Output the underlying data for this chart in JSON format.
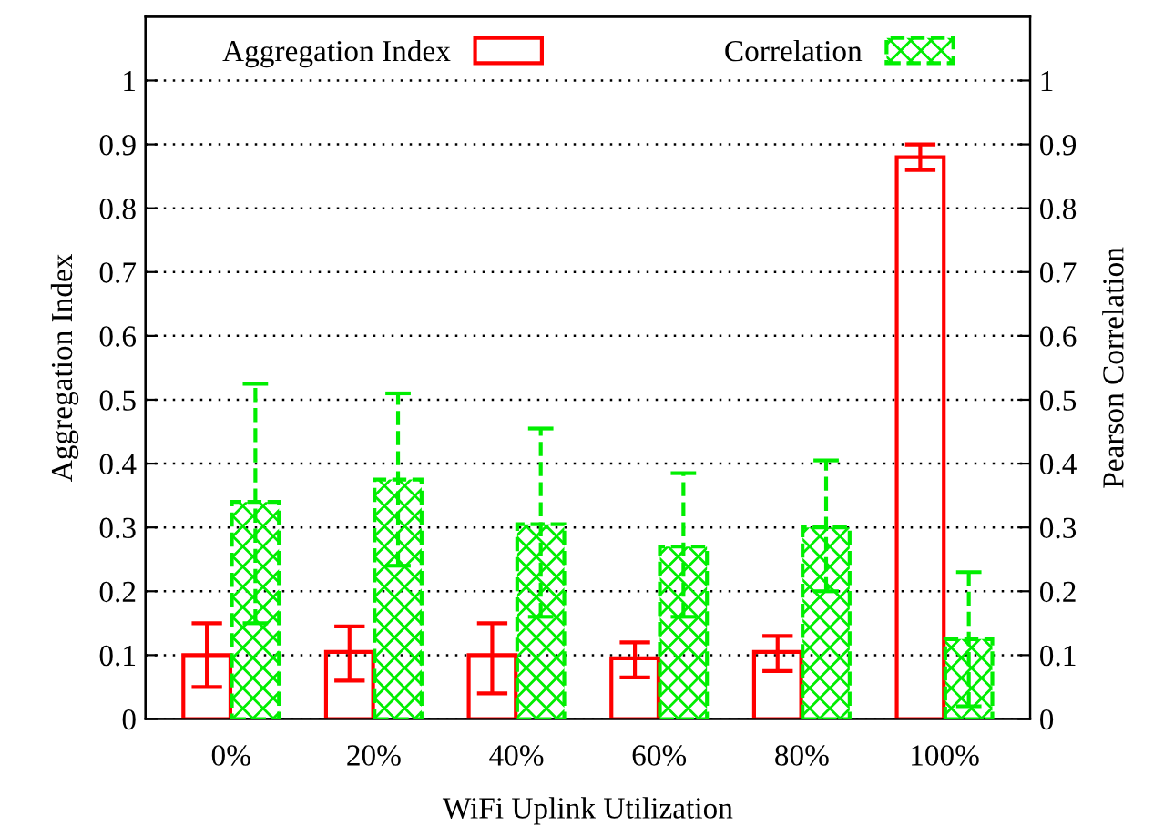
{
  "chart_data": {
    "type": "bar",
    "xlabel": "WiFi Uplink Utilization",
    "ylabel": "Aggregation Index",
    "y2label": "Pearson Correlation",
    "categories": [
      "0%",
      "20%",
      "40%",
      "60%",
      "80%",
      "100%"
    ],
    "series": [
      {
        "name": "Aggregation Index",
        "color": "#ff0000",
        "values": [
          0.1,
          0.105,
          0.1,
          0.095,
          0.105,
          0.88
        ],
        "errors": [
          [
            0.05,
            0.15
          ],
          [
            0.06,
            0.145
          ],
          [
            0.04,
            0.15
          ],
          [
            0.065,
            0.12
          ],
          [
            0.075,
            0.13
          ],
          [
            0.86,
            0.9
          ]
        ]
      },
      {
        "name": "Correlation",
        "color": "#00ee00",
        "axis": "y2",
        "values": [
          0.34,
          0.375,
          0.305,
          0.27,
          0.3,
          0.125
        ],
        "errors": [
          [
            0.15,
            0.525
          ],
          [
            0.24,
            0.51
          ],
          [
            0.16,
            0.455
          ],
          [
            0.16,
            0.385
          ],
          [
            0.2,
            0.405
          ],
          [
            0.02,
            0.23
          ]
        ]
      }
    ],
    "ylim": [
      0,
      1.1
    ],
    "yticks": [
      0,
      0.1,
      0.2,
      0.3,
      0.4,
      0.5,
      0.6,
      0.7,
      0.8,
      0.9,
      1
    ],
    "y2lim": [
      0,
      1.1
    ],
    "y2ticks": [
      0,
      0.1,
      0.2,
      0.3,
      0.4,
      0.5,
      0.6,
      0.7,
      0.8,
      0.9,
      1
    ],
    "grid": "y",
    "legend": "top"
  }
}
